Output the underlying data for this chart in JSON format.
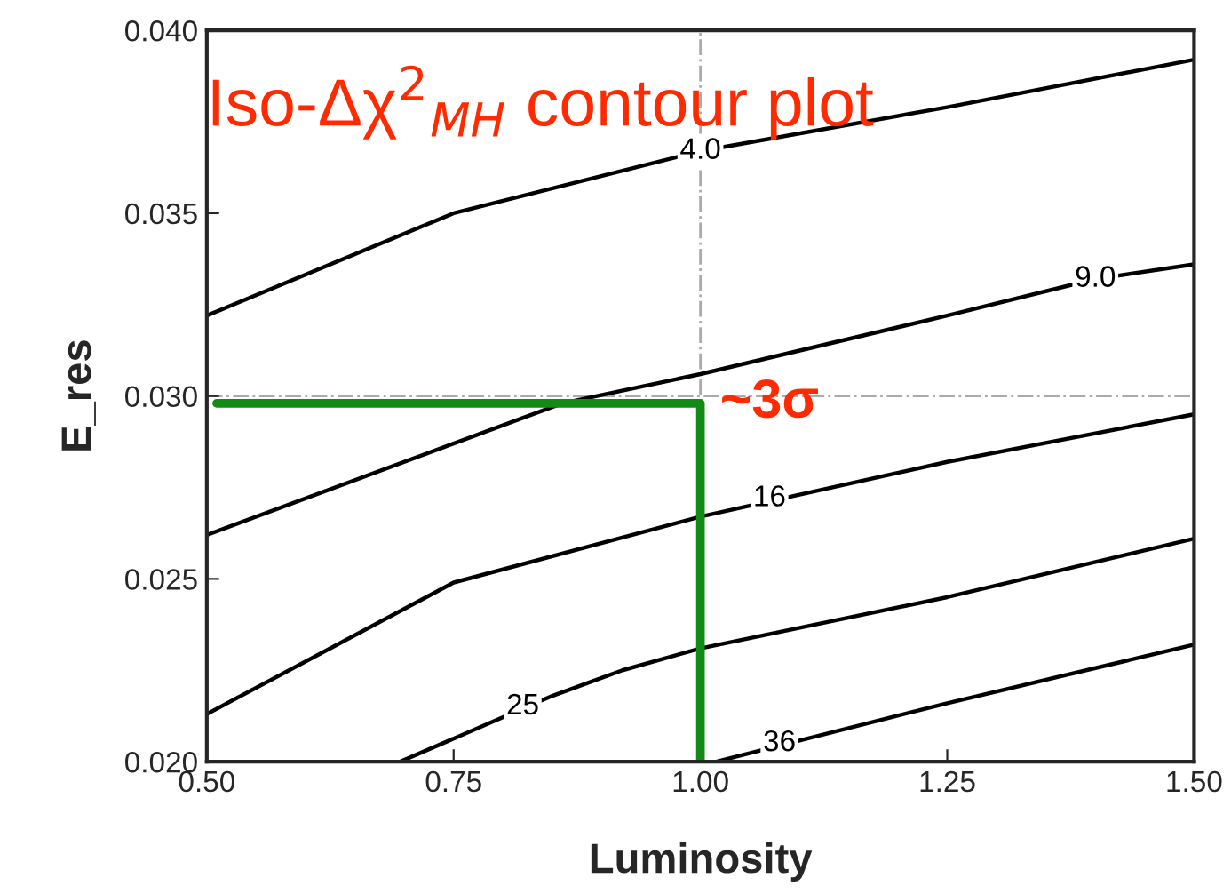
{
  "chart_data": {
    "type": "line",
    "title": "Iso-Δχ$^{2}$$_{MH}$ contour plot",
    "xlabel": "Luminosity",
    "ylabel": "E_res",
    "series": [
      {
        "color": "#000000",
        "x": [
          0.5,
          0.75,
          1.0,
          1.25,
          1.5
        ],
        "values": [
          0.0322,
          0.035,
          0.0367,
          0.0379,
          0.0392
        ]
      },
      {
        "color": "#000000",
        "x": [
          0.5,
          0.86,
          1.0,
          1.25,
          1.4,
          1.5
        ],
        "values": [
          0.0262,
          0.0298,
          0.0306,
          0.0322,
          0.0332,
          0.0336
        ]
      },
      {
        "color": "#000000",
        "x": [
          0.5,
          0.75,
          1.0,
          1.25,
          1.5
        ],
        "values": [
          0.0213,
          0.0249,
          0.0267,
          0.0282,
          0.0295
        ]
      },
      {
        "color": "#000000",
        "x": [
          0.696,
          0.85,
          0.921,
          1.0,
          1.25,
          1.5
        ],
        "values": [
          0.02,
          0.0218,
          0.0225,
          0.0231,
          0.0245,
          0.0261
        ]
      },
      {
        "color": "#000000",
        "x": [
          1.016,
          1.25,
          1.5
        ],
        "values": [
          0.02,
          0.0216,
          0.0232
        ]
      },
      {
        "color": "#138a13",
        "x": [
          0.51,
          1.0,
          1.0
        ],
        "values": [
          0.0298,
          0.0298,
          0.02
        ]
      }
    ],
    "xlim": [
      0.5,
      1.5
    ],
    "ylim": [
      0.02,
      0.04
    ],
    "xticks": [
      {
        "value": 0.5,
        "label": "0.50"
      },
      {
        "value": 0.75,
        "label": "0.75"
      },
      {
        "value": 1.0,
        "label": "1.00"
      },
      {
        "value": 1.25,
        "label": "1.25"
      },
      {
        "value": 1.5,
        "label": "1.50"
      }
    ],
    "yticks": [
      {
        "value": 0.02,
        "label": "0.020"
      },
      {
        "value": 0.025,
        "label": "0.025"
      },
      {
        "value": 0.03,
        "label": "0.030"
      },
      {
        "value": 0.035,
        "label": "0.035"
      },
      {
        "value": 0.04,
        "label": "0.040"
      }
    ],
    "ref_lines": [
      {
        "axis": "x",
        "value": 1.0,
        "color": "#aaaaaa",
        "line_style": "dashdot"
      },
      {
        "axis": "y",
        "value": 0.03,
        "color": "#aaaaaa",
        "line_style": "dashdot"
      }
    ],
    "annotations": [
      {
        "text": "4.0",
        "x": 1.0,
        "y": 0.0367
      },
      {
        "text": "9.0",
        "x": 1.4,
        "y": 0.0332
      },
      {
        "text": "16",
        "x": 1.07,
        "y": 0.0272
      },
      {
        "text": "25",
        "x": 0.82,
        "y": 0.0215
      },
      {
        "text": "36",
        "x": 1.08,
        "y": 0.0205
      },
      {
        "text": "~3σ",
        "x": 1.07,
        "y": 0.0298
      }
    ],
    "grid": false,
    "legend": false
  }
}
